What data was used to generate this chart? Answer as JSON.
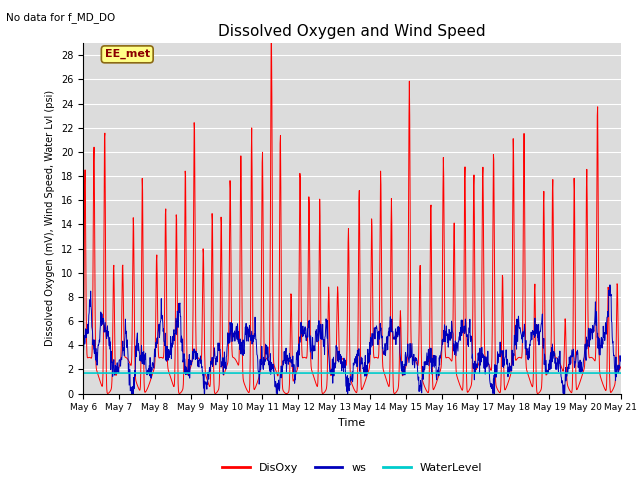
{
  "title": "Dissolved Oxygen and Wind Speed",
  "subtitle": "No data for f_MD_DO",
  "xlabel": "Time",
  "ylabel": "Dissolved Oxygen (mV), Wind Speed, Water Lvl (psi)",
  "annotation": "EE_met",
  "ylim": [
    0,
    29
  ],
  "yticks": [
    0,
    2,
    4,
    6,
    8,
    10,
    12,
    14,
    16,
    18,
    20,
    22,
    24,
    26,
    28
  ],
  "xtick_labels": [
    "May 6",
    "May 7",
    "May 8",
    "May 9",
    "May 10",
    "May 11",
    "May 12",
    "May 13",
    "May 14",
    "May 15",
    "May 16",
    "May 17",
    "May 18",
    "May 19",
    "May 20",
    "May 21"
  ],
  "disoxy_color": "#FF0000",
  "ws_color": "#0000BB",
  "waterlevel_color": "#00CCCC",
  "bg_color": "#DCDCDC",
  "legend_labels": [
    "DisOxy",
    "ws",
    "WaterLevel"
  ],
  "water_level_value": 1.7,
  "seed": 42
}
